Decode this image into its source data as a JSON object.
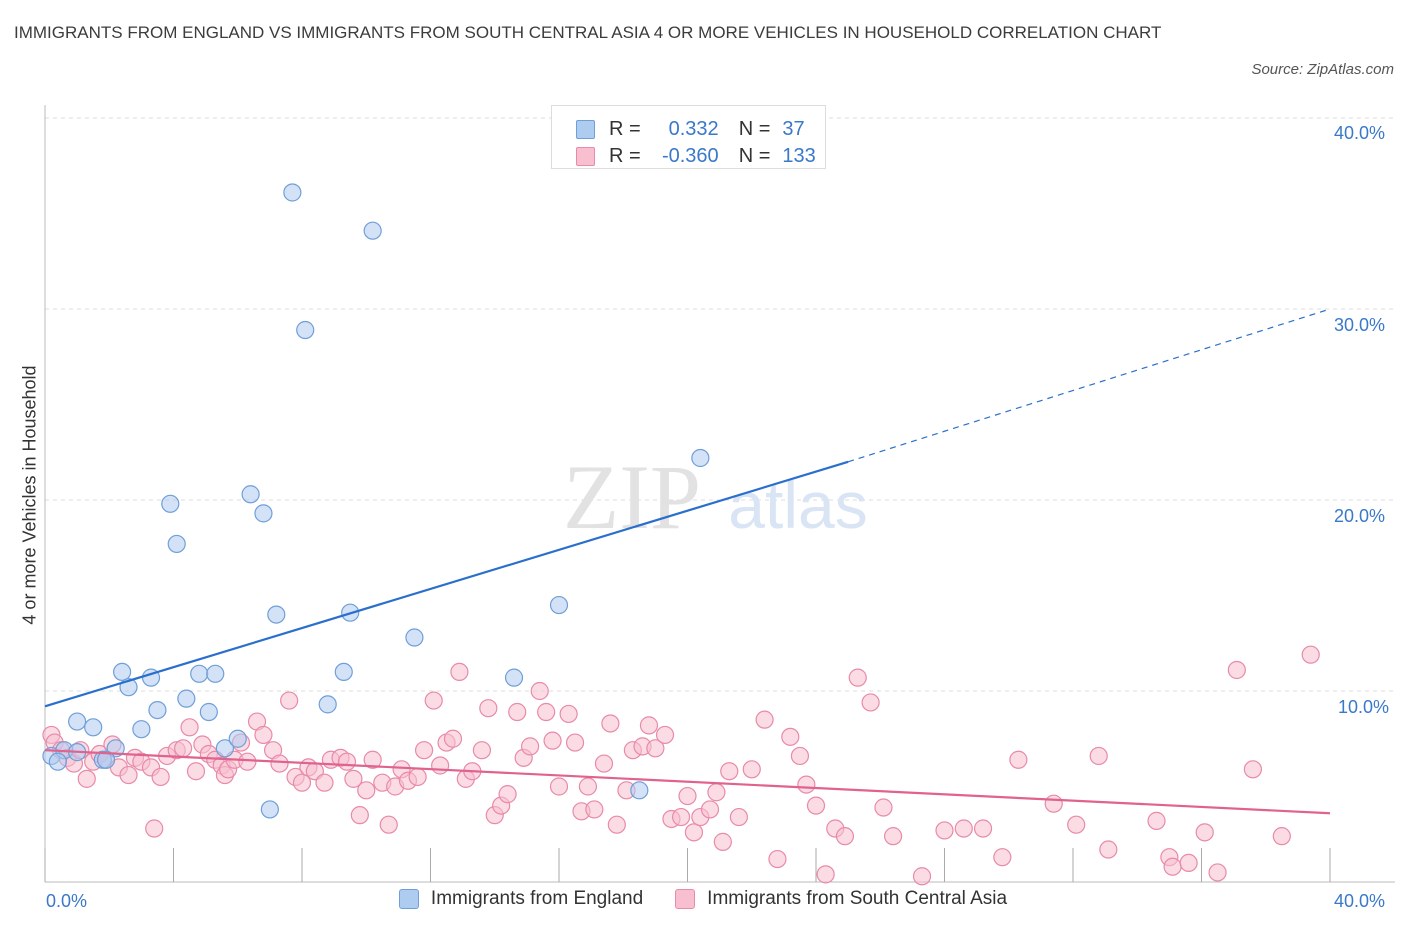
{
  "header": {
    "title": "IMMIGRANTS FROM ENGLAND VS IMMIGRANTS FROM SOUTH CENTRAL ASIA 4 OR MORE VEHICLES IN HOUSEHOLD CORRELATION CHART",
    "source": "Source: ZipAtlas.com"
  },
  "watermark": {
    "zip": "ZIP",
    "atlas": "atlas"
  },
  "legend_top": [
    {
      "r_label": "R =",
      "r_value": "0.332",
      "n_label": "N =",
      "n_value": "37"
    },
    {
      "r_label": "R =",
      "r_value": "-0.360",
      "n_label": "N =",
      "n_value": "133"
    }
  ],
  "legend_bottom": [
    {
      "label": "Immigrants from England"
    },
    {
      "label": "Immigrants from South Central Asia"
    }
  ],
  "axes": {
    "ylabel": "4 or more Vehicles in Household",
    "x_min_label": "0.0%",
    "x_max_label": "40.0%",
    "y_tick_labels": [
      "10.0%",
      "20.0%",
      "30.0%",
      "40.0%"
    ]
  },
  "colors": {
    "england_fill": "#aecbf0",
    "england_stroke": "#6f9fd8",
    "england_line": "#2a6fcc",
    "sca_fill": "#f7bfd0",
    "sca_stroke": "#e88aa8",
    "sca_line": "#e0628e",
    "grid": "#dddddd",
    "axis_text": "#3a78c9"
  },
  "chart_data": {
    "type": "scatter",
    "title": "IMMIGRANTS FROM ENGLAND VS IMMIGRANTS FROM SOUTH CENTRAL ASIA 4 OR MORE VEHICLES IN HOUSEHOLD CORRELATION CHART",
    "xlabel": "",
    "ylabel": "4 or more Vehicles in Household",
    "xlim": [
      0,
      40
    ],
    "ylim": [
      0,
      40
    ],
    "y_ticks": [
      10,
      20,
      30,
      40
    ],
    "grid": true,
    "legend_position": "bottom",
    "series": [
      {
        "name": "Immigrants from England",
        "r": 0.332,
        "n": 37,
        "trend": {
          "x": [
            0,
            25
          ],
          "y": [
            9.2,
            22.0
          ],
          "dashed_to": [
            40,
            30.0
          ]
        },
        "points": [
          [
            0.2,
            6.6
          ],
          [
            0.6,
            6.9
          ],
          [
            1.0,
            6.8
          ],
          [
            1.0,
            8.4
          ],
          [
            1.5,
            8.1
          ],
          [
            1.8,
            6.4
          ],
          [
            2.2,
            7.0
          ],
          [
            2.4,
            11.0
          ],
          [
            2.6,
            10.2
          ],
          [
            3.0,
            8.0
          ],
          [
            3.3,
            10.7
          ],
          [
            3.5,
            9.0
          ],
          [
            3.9,
            19.8
          ],
          [
            4.1,
            17.7
          ],
          [
            4.4,
            9.6
          ],
          [
            4.8,
            10.9
          ],
          [
            5.1,
            8.9
          ],
          [
            5.3,
            10.9
          ],
          [
            5.6,
            7.0
          ],
          [
            6.0,
            7.5
          ],
          [
            6.4,
            20.3
          ],
          [
            6.8,
            19.3
          ],
          [
            7.0,
            3.8
          ],
          [
            7.2,
            14.0
          ],
          [
            7.7,
            36.1
          ],
          [
            8.1,
            28.9
          ],
          [
            8.8,
            9.3
          ],
          [
            9.3,
            11.0
          ],
          [
            9.5,
            14.1
          ],
          [
            10.2,
            34.1
          ],
          [
            11.5,
            12.8
          ],
          [
            14.6,
            10.7
          ],
          [
            16.0,
            14.5
          ],
          [
            18.5,
            4.8
          ],
          [
            20.4,
            22.2
          ],
          [
            0.4,
            6.3
          ],
          [
            1.9,
            6.4
          ]
        ]
      },
      {
        "name": "Immigrants from South Central Asia",
        "r": -0.36,
        "n": 133,
        "trend": {
          "x": [
            0,
            40
          ],
          "y": [
            6.9,
            3.6
          ]
        },
        "points": [
          [
            0.2,
            7.7
          ],
          [
            0.3,
            7.3
          ],
          [
            0.5,
            6.9
          ],
          [
            0.7,
            6.5
          ],
          [
            0.9,
            6.2
          ],
          [
            1.1,
            6.9
          ],
          [
            1.3,
            5.4
          ],
          [
            1.5,
            6.3
          ],
          [
            1.7,
            6.7
          ],
          [
            1.9,
            6.4
          ],
          [
            2.1,
            7.2
          ],
          [
            2.3,
            6.0
          ],
          [
            2.6,
            5.6
          ],
          [
            2.8,
            6.5
          ],
          [
            3.0,
            6.3
          ],
          [
            3.3,
            6.0
          ],
          [
            3.4,
            2.8
          ],
          [
            3.6,
            5.5
          ],
          [
            3.8,
            6.6
          ],
          [
            4.1,
            6.9
          ],
          [
            4.3,
            7.0
          ],
          [
            4.5,
            8.1
          ],
          [
            4.7,
            5.8
          ],
          [
            4.9,
            7.2
          ],
          [
            5.1,
            6.7
          ],
          [
            5.3,
            6.4
          ],
          [
            5.5,
            6.1
          ],
          [
            5.6,
            5.6
          ],
          [
            5.7,
            5.9
          ],
          [
            5.9,
            6.4
          ],
          [
            6.1,
            7.3
          ],
          [
            6.3,
            6.3
          ],
          [
            6.6,
            8.4
          ],
          [
            6.8,
            7.7
          ],
          [
            7.1,
            6.9
          ],
          [
            7.3,
            6.2
          ],
          [
            7.6,
            9.5
          ],
          [
            7.8,
            5.5
          ],
          [
            8.0,
            5.2
          ],
          [
            8.2,
            6.0
          ],
          [
            8.4,
            5.8
          ],
          [
            8.7,
            5.2
          ],
          [
            8.9,
            6.4
          ],
          [
            9.2,
            6.5
          ],
          [
            9.4,
            6.3
          ],
          [
            9.6,
            5.4
          ],
          [
            9.8,
            3.5
          ],
          [
            10.0,
            4.8
          ],
          [
            10.2,
            6.4
          ],
          [
            10.5,
            5.2
          ],
          [
            10.7,
            3.0
          ],
          [
            10.9,
            5.0
          ],
          [
            11.1,
            5.9
          ],
          [
            11.3,
            5.3
          ],
          [
            11.6,
            5.5
          ],
          [
            11.8,
            6.9
          ],
          [
            12.1,
            9.5
          ],
          [
            12.3,
            6.1
          ],
          [
            12.5,
            7.3
          ],
          [
            12.7,
            7.5
          ],
          [
            12.9,
            11.0
          ],
          [
            13.1,
            5.4
          ],
          [
            13.3,
            5.8
          ],
          [
            13.6,
            6.9
          ],
          [
            13.8,
            9.1
          ],
          [
            14.0,
            3.5
          ],
          [
            14.2,
            4.0
          ],
          [
            14.4,
            4.6
          ],
          [
            14.7,
            8.9
          ],
          [
            14.9,
            6.5
          ],
          [
            15.1,
            7.1
          ],
          [
            15.4,
            10.0
          ],
          [
            15.6,
            8.9
          ],
          [
            15.8,
            7.4
          ],
          [
            16.0,
            5.0
          ],
          [
            16.3,
            8.8
          ],
          [
            16.5,
            7.3
          ],
          [
            16.7,
            3.7
          ],
          [
            16.9,
            5.0
          ],
          [
            17.1,
            3.8
          ],
          [
            17.4,
            6.2
          ],
          [
            17.6,
            8.3
          ],
          [
            17.8,
            3.0
          ],
          [
            18.1,
            4.8
          ],
          [
            18.3,
            6.9
          ],
          [
            18.6,
            7.1
          ],
          [
            18.8,
            8.2
          ],
          [
            19.0,
            7.0
          ],
          [
            19.3,
            7.7
          ],
          [
            19.5,
            3.3
          ],
          [
            19.8,
            3.4
          ],
          [
            20.0,
            4.5
          ],
          [
            20.2,
            2.6
          ],
          [
            20.4,
            3.4
          ],
          [
            20.7,
            3.8
          ],
          [
            20.9,
            4.7
          ],
          [
            21.1,
            2.1
          ],
          [
            21.3,
            5.8
          ],
          [
            21.6,
            3.4
          ],
          [
            22.0,
            5.9
          ],
          [
            22.4,
            8.5
          ],
          [
            22.8,
            1.2
          ],
          [
            23.2,
            7.6
          ],
          [
            23.5,
            6.6
          ],
          [
            23.7,
            5.1
          ],
          [
            24.0,
            4.0
          ],
          [
            24.3,
            0.4
          ],
          [
            24.6,
            2.8
          ],
          [
            24.9,
            2.4
          ],
          [
            25.3,
            10.7
          ],
          [
            25.7,
            9.4
          ],
          [
            26.1,
            3.9
          ],
          [
            26.4,
            2.4
          ],
          [
            27.3,
            0.3
          ],
          [
            28.0,
            2.7
          ],
          [
            28.6,
            2.8
          ],
          [
            29.2,
            2.8
          ],
          [
            29.8,
            1.3
          ],
          [
            30.3,
            6.4
          ],
          [
            31.4,
            4.1
          ],
          [
            32.1,
            3.0
          ],
          [
            32.8,
            6.6
          ],
          [
            33.1,
            1.7
          ],
          [
            34.6,
            3.2
          ],
          [
            35.0,
            1.3
          ],
          [
            35.1,
            0.8
          ],
          [
            35.6,
            1.0
          ],
          [
            36.1,
            2.6
          ],
          [
            36.5,
            0.5
          ],
          [
            37.1,
            11.1
          ],
          [
            37.6,
            5.9
          ],
          [
            38.5,
            2.4
          ],
          [
            39.4,
            11.9
          ]
        ]
      }
    ]
  }
}
